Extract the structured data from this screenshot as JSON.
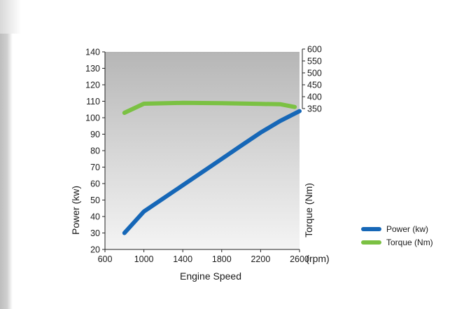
{
  "chart_data": {
    "type": "line",
    "xlabel": "Engine Speed",
    "xunit": "(rpm)",
    "ylabel": "Power (kw)",
    "y2label": "Torque (Nm)",
    "xlim": [
      600,
      2600
    ],
    "ylim": [
      20,
      140
    ],
    "y2lim": [
      350,
      600
    ],
    "xticks": [
      600,
      1000,
      1400,
      1800,
      2200,
      2600
    ],
    "yticks": [
      20,
      30,
      40,
      50,
      60,
      70,
      80,
      90,
      100,
      110,
      120,
      130,
      140
    ],
    "y2ticks": [
      350,
      400,
      450,
      500,
      550,
      600
    ],
    "series": [
      {
        "name": "Power (kw)",
        "color": "#1667b7",
        "axis": "left",
        "x": [
          800,
          1000,
          1200,
          1400,
          1600,
          1800,
          2000,
          2200,
          2400,
          2600
        ],
        "y": [
          30,
          43,
          51,
          59,
          67,
          75,
          83,
          91,
          98,
          104
        ]
      },
      {
        "name": "Torque (Nm)",
        "color": "#7bc143",
        "axis": "left",
        "x": [
          800,
          1000,
          1400,
          1800,
          2200,
          2400,
          2550
        ],
        "y": [
          103,
          108.5,
          109,
          108.8,
          108.4,
          108.2,
          106.5
        ]
      }
    ],
    "legend": "right"
  }
}
